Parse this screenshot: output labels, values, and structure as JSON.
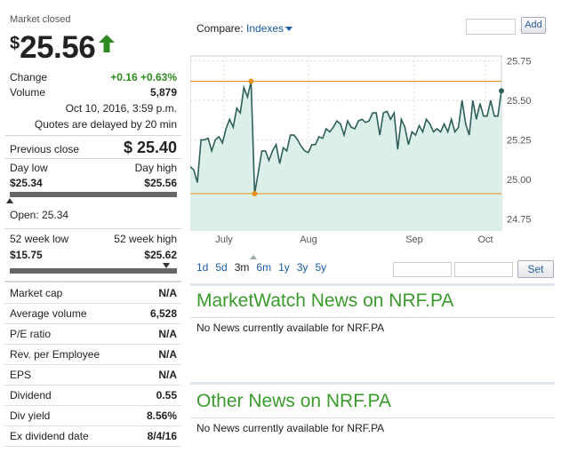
{
  "quote": {
    "market_status": "Market closed",
    "currency_symbol": "$",
    "price": "25.56",
    "change_label": "Change",
    "change_value": "+0.16 +0.63%",
    "volume_label": "Volume",
    "volume_value": "5,879",
    "timestamp": "Oct 10, 2016, 3:59 p.m.",
    "delay_note": "Quotes are delayed by 20 min",
    "prev_close_label": "Previous close",
    "prev_close_value": "$ 25.40",
    "day_low_label": "Day low",
    "day_high_label": "Day high",
    "day_low_value": "$25.34",
    "day_high_value": "$25.56",
    "open_text": "Open: 25.34",
    "wk52_low_label": "52 week low",
    "wk52_high_label": "52 week high",
    "wk52_low_value": "$15.75",
    "wk52_high_value": "$25.62"
  },
  "stats": [
    {
      "label": "Market cap",
      "value": "N/A"
    },
    {
      "label": "Average volume",
      "value": "6,528"
    },
    {
      "label": "P/E ratio",
      "value": "N/A"
    },
    {
      "label": "Rev. per Employee",
      "value": "N/A"
    },
    {
      "label": "EPS",
      "value": "N/A"
    },
    {
      "label": "Dividend",
      "value": "0.55"
    },
    {
      "label": "Div yield",
      "value": "8.56%"
    },
    {
      "label": "Ex dividend date",
      "value": "8/4/16"
    }
  ],
  "compare": {
    "label": "Compare:",
    "dropdown": "Indexes",
    "add_label": "Add"
  },
  "ranges": [
    "1d",
    "5d",
    "3m",
    "6m",
    "1y",
    "3y",
    "5y"
  ],
  "active_range": "3m",
  "set_label": "Set",
  "news": {
    "mw_title": "MarketWatch News on NRF.PA",
    "mw_empty": "No News currently available for NRF.PA",
    "other_title": "Other News on NRF.PA",
    "other_empty": "No News currently available for NRF.PA"
  },
  "colors": {
    "up": "#2e8b1f",
    "line": "#2f5f5a",
    "fill": "#dcefe9",
    "marker": "#e8901f",
    "link": "#1a5aa6",
    "news_title": "#3a9a2c"
  },
  "chart_data": {
    "type": "area",
    "x_ticks": [
      "July",
      "Aug",
      "Sep",
      "Oct"
    ],
    "y_ticks": [
      "25.75",
      "25.50",
      "25.25",
      "25.00",
      "24.75"
    ],
    "ylim": [
      24.68,
      25.78
    ],
    "high_marker": 25.62,
    "low_marker": 24.91,
    "values": [
      25.08,
      25.06,
      24.98,
      25.25,
      25.25,
      25.26,
      25.18,
      25.25,
      25.27,
      25.23,
      25.32,
      25.38,
      25.33,
      25.45,
      25.42,
      25.58,
      25.52,
      25.62,
      24.91,
      25.04,
      25.18,
      25.18,
      25.12,
      25.18,
      25.22,
      25.1,
      25.2,
      25.18,
      25.28,
      25.28,
      25.25,
      25.21,
      25.18,
      25.17,
      25.22,
      25.22,
      25.27,
      25.26,
      25.32,
      25.3,
      25.33,
      25.37,
      25.35,
      25.28,
      25.37,
      25.33,
      25.32,
      25.37,
      25.38,
      25.36,
      25.37,
      25.42,
      25.42,
      25.28,
      25.42,
      25.43,
      25.38,
      25.42,
      25.19,
      25.38,
      25.33,
      25.22,
      25.3,
      25.28,
      25.34,
      25.3,
      25.38,
      25.35,
      25.3,
      25.32,
      25.3,
      25.35,
      25.3,
      25.38,
      25.3,
      25.33,
      25.5,
      25.35,
      25.28,
      25.5,
      25.38,
      25.48,
      25.4,
      25.4,
      25.5,
      25.4,
      25.4,
      25.56
    ]
  }
}
